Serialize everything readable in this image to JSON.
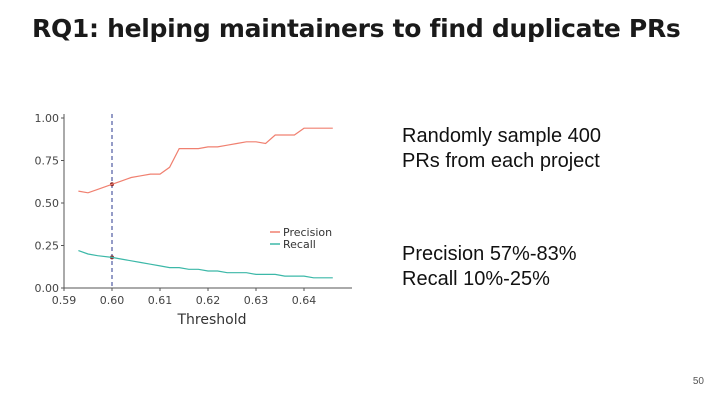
{
  "slide": {
    "title": "RQ1: helping maintainers to find duplicate PRs",
    "bullets": [
      [
        "Randomly sample 400",
        "PRs from each project"
      ],
      [
        "Precision 57%-83%",
        "Recall 10%-25%"
      ]
    ],
    "page_number": "50"
  },
  "chart_data": {
    "type": "line",
    "xlabel": "Threshold",
    "ylabel": "",
    "xlim": [
      0.59,
      0.65
    ],
    "ylim": [
      0,
      1
    ],
    "x_ticks": [
      "0.59",
      "0.60",
      "0.61",
      "0.62",
      "0.63",
      "0.64"
    ],
    "y_ticks": [
      "0.00",
      "0.25",
      "0.50",
      "0.75",
      "1.00"
    ],
    "grid": false,
    "legend_position": "center-right",
    "marker_line": {
      "x": 0.6,
      "style": "dashed",
      "color": "#2b3a8f"
    },
    "series": [
      {
        "name": "Precision",
        "color": "#f08070",
        "x": [
          0.593,
          0.595,
          0.597,
          0.6,
          0.602,
          0.604,
          0.606,
          0.608,
          0.61,
          0.612,
          0.614,
          0.616,
          0.618,
          0.62,
          0.622,
          0.624,
          0.626,
          0.628,
          0.63,
          0.632,
          0.634,
          0.636,
          0.638,
          0.64,
          0.642,
          0.644,
          0.646
        ],
        "y": [
          0.57,
          0.56,
          0.58,
          0.61,
          0.63,
          0.65,
          0.66,
          0.67,
          0.67,
          0.71,
          0.82,
          0.82,
          0.82,
          0.83,
          0.83,
          0.84,
          0.85,
          0.86,
          0.86,
          0.85,
          0.9,
          0.9,
          0.9,
          0.94,
          0.94,
          0.94,
          0.94
        ]
      },
      {
        "name": "Recall",
        "color": "#3cb8a8",
        "x": [
          0.593,
          0.595,
          0.597,
          0.6,
          0.602,
          0.604,
          0.606,
          0.608,
          0.61,
          0.612,
          0.614,
          0.616,
          0.618,
          0.62,
          0.622,
          0.624,
          0.626,
          0.628,
          0.63,
          0.632,
          0.634,
          0.636,
          0.638,
          0.64,
          0.642,
          0.644,
          0.646
        ],
        "y": [
          0.22,
          0.2,
          0.19,
          0.18,
          0.17,
          0.16,
          0.15,
          0.14,
          0.13,
          0.12,
          0.12,
          0.11,
          0.11,
          0.1,
          0.1,
          0.09,
          0.09,
          0.09,
          0.08,
          0.08,
          0.08,
          0.07,
          0.07,
          0.07,
          0.06,
          0.06,
          0.06
        ]
      }
    ]
  }
}
